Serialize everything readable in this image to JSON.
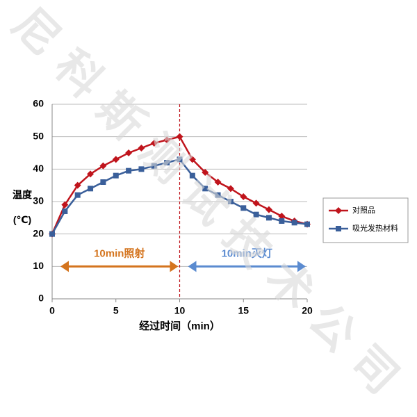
{
  "chart_data": {
    "type": "line",
    "watermark": "尼科斯测试技术公司",
    "xlabel": "经过时间（min）",
    "ylabel": "温度(℃)",
    "x": [
      0,
      1,
      2,
      3,
      4,
      5,
      6,
      7,
      8,
      9,
      10,
      11,
      12,
      13,
      14,
      15,
      16,
      17,
      18,
      19,
      20
    ],
    "series": [
      {
        "name": "对照品",
        "color": "#c0141c",
        "marker": "diamond",
        "values": [
          20,
          29,
          35,
          38.5,
          41,
          43,
          45,
          46.5,
          48,
          49,
          50,
          43,
          39,
          36,
          34,
          31.5,
          29.5,
          27.5,
          25.5,
          24,
          23
        ]
      },
      {
        "name": "吸光发热材料",
        "color": "#3a5f9a",
        "marker": "square",
        "values": [
          20,
          27,
          32,
          34,
          36,
          38,
          39.5,
          40,
          41,
          42,
          43,
          38,
          34,
          32,
          30,
          28,
          26,
          25,
          24,
          23.5,
          23
        ]
      }
    ],
    "xlim": [
      0,
      20
    ],
    "xticks": [
      0,
      5,
      10,
      15,
      20
    ],
    "ylim": [
      0,
      60
    ],
    "yticks": [
      0,
      10,
      20,
      30,
      40,
      50,
      60
    ],
    "grid": true,
    "vline": {
      "x": 10,
      "color": "#c0141c"
    },
    "annotations": [
      {
        "text": "10min照射",
        "span": [
          0,
          10
        ],
        "y": 10,
        "color": "#d4741e"
      },
      {
        "text": "10min灭灯",
        "span": [
          10,
          20
        ],
        "y": 10,
        "color": "#5b8bd0"
      }
    ],
    "legend": "right"
  }
}
